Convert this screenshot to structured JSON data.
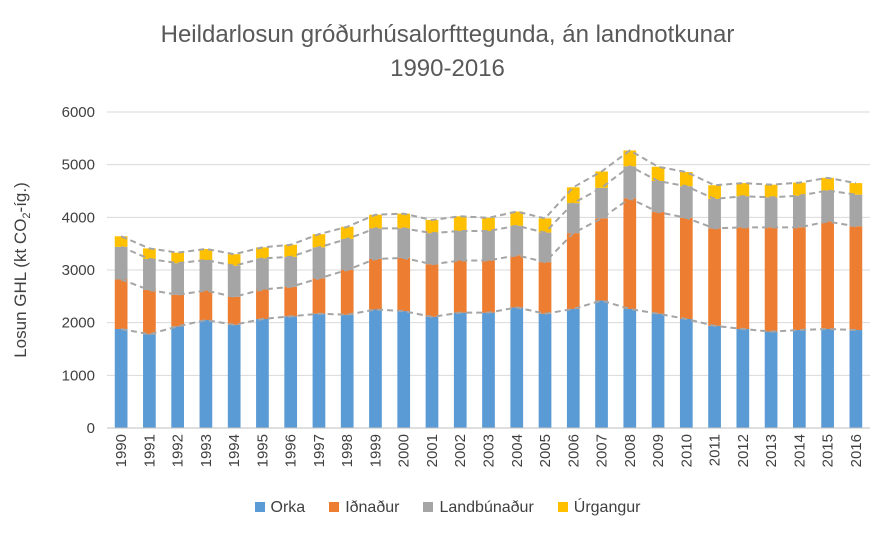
{
  "chart_data": {
    "type": "bar",
    "stacked": true,
    "title_line1": "Heildarlosun gróðurhúsalorfttegunda, án landnotkunar",
    "title_line2": "1990-2016",
    "ylabel_main": "Losun GHL (kt CO",
    "ylabel_sub": "2",
    "ylabel_end": "-íg.)",
    "xlabel": "",
    "ylim": [
      0,
      6000
    ],
    "yticks": [
      "0",
      "1000",
      "2000",
      "3000",
      "4000",
      "5000",
      "6000"
    ],
    "grid": true,
    "legend_position": "bottom",
    "cumulative_lines": "dashed grey",
    "categories": [
      "1990",
      "1991",
      "1992",
      "1993",
      "1994",
      "1995",
      "1996",
      "1997",
      "1998",
      "1999",
      "2000",
      "2001",
      "2002",
      "2003",
      "2004",
      "2005",
      "2006",
      "2007",
      "2008",
      "2009",
      "2010",
      "2011",
      "2012",
      "2013",
      "2014",
      "2015",
      "2016"
    ],
    "series": [
      {
        "name": "Orka",
        "color": "#5B9BD5",
        "values": [
          1880,
          1780,
          1930,
          2050,
          1960,
          2070,
          2120,
          2170,
          2150,
          2250,
          2220,
          2110,
          2190,
          2190,
          2290,
          2170,
          2260,
          2420,
          2260,
          2170,
          2070,
          1940,
          1880,
          1830,
          1860,
          1880,
          1860
        ]
      },
      {
        "name": "Iðnaður",
        "color": "#ED7D31",
        "values": [
          940,
          840,
          600,
          560,
          530,
          560,
          560,
          670,
          850,
          960,
          1010,
          1000,
          990,
          990,
          990,
          980,
          1440,
          1560,
          2100,
          1930,
          1920,
          1850,
          1930,
          1980,
          1950,
          2040,
          1970
        ]
      },
      {
        "name": "Landbúnaður",
        "color": "#A5A5A5",
        "values": [
          620,
          590,
          600,
          580,
          590,
          590,
          570,
          590,
          590,
          580,
          560,
          590,
          560,
          560,
          560,
          560,
          570,
          580,
          610,
          590,
          600,
          560,
          590,
          570,
          600,
          590,
          600
        ]
      },
      {
        "name": "Úrgangur",
        "color": "#FFC000",
        "values": [
          200,
          200,
          200,
          210,
          220,
          210,
          230,
          250,
          230,
          260,
          280,
          250,
          280,
          250,
          270,
          270,
          300,
          310,
          300,
          270,
          270,
          260,
          250,
          240,
          250,
          240,
          220
        ]
      }
    ]
  }
}
